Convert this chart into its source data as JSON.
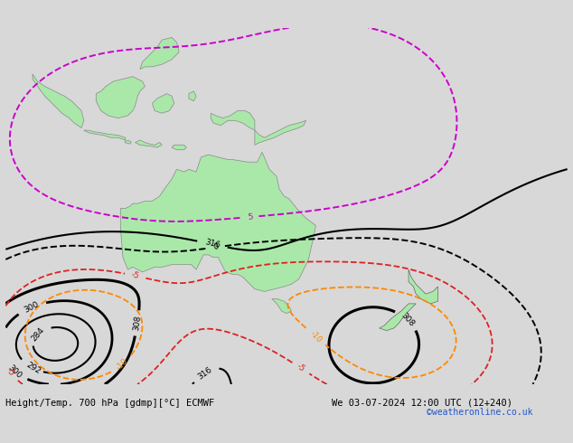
{
  "title_left": "Height/Temp. 700 hPa [gdmp][°C] ECMWF",
  "title_right": "We 03-07-2024 12:00 UTC (12+240)",
  "copyright": "©weatheronline.co.uk",
  "background_color": "#d8d8d8",
  "land_color": "#aae8aa",
  "land_edge_color": "#888888",
  "ocean_color": "#d8d8d8",
  "fig_width": 6.34,
  "fig_height": 4.9,
  "dpi": 100,
  "bottom_text_color": "#000000",
  "copyright_color": "#2255cc",
  "contour_geo_color": "#000000",
  "contour_temp_neg_color": "#dd2222",
  "contour_temp_zero_color": "#000000",
  "contour_temp_pos_color": "#cc00cc",
  "contour_orange_color": "#ff8800",
  "lon_min": 90,
  "lon_max": 205,
  "lat_min": -58,
  "lat_max": 15
}
